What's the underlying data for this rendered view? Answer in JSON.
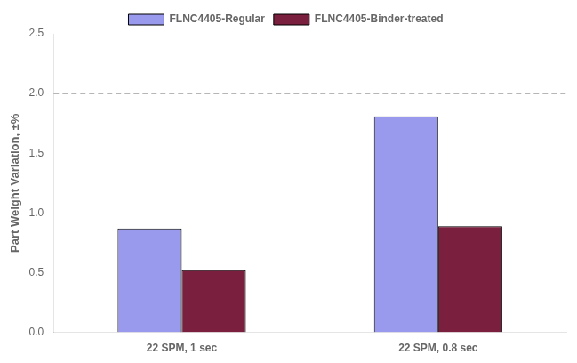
{
  "chart_data": {
    "type": "bar",
    "categories": [
      "22 SPM, 1 sec",
      "22 SPM, 0.8 sec"
    ],
    "series": [
      {
        "name": "FLNC4405-Regular",
        "color": "#9999ee",
        "values": [
          0.87,
          1.81
        ]
      },
      {
        "name": "FLNC4405-Binder-treated",
        "color": "#7a1f3d",
        "values": [
          0.52,
          0.89
        ]
      }
    ],
    "ylabel": "Part Weight Variation, ±%",
    "ylim": [
      0,
      2.5
    ],
    "yticks": [
      {
        "value": 0,
        "label": "0.0"
      },
      0.5,
      {
        "value": 1,
        "label": "1.0"
      },
      1.5,
      {
        "value": 2,
        "label": "2.0"
      },
      2.5
    ],
    "reference_line": 2.0,
    "grid": false,
    "legend": "top"
  }
}
